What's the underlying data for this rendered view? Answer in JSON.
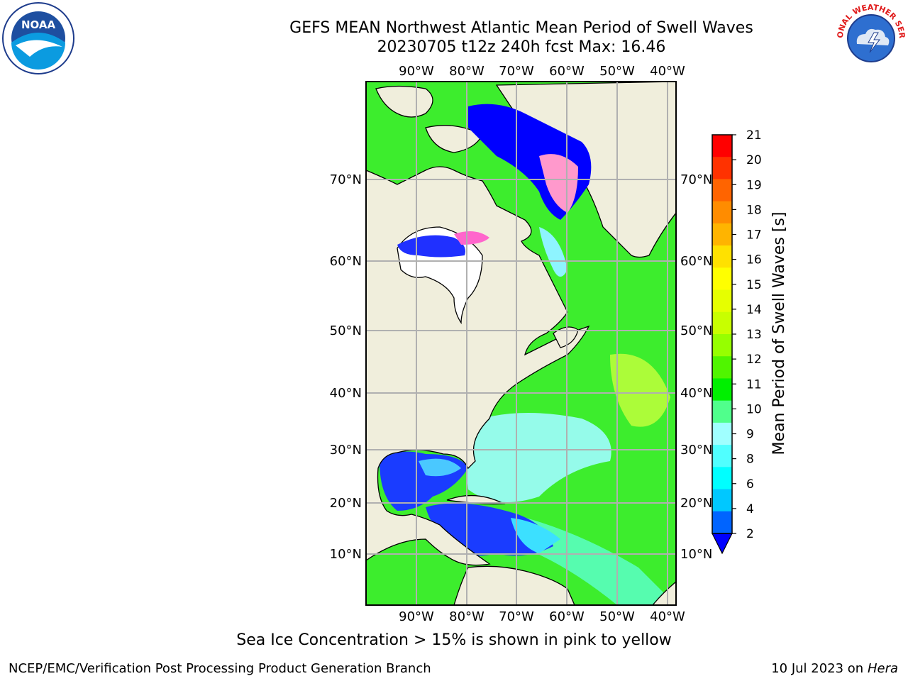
{
  "header": {
    "title_line1": "GEFS MEAN Northwest Atlantic Mean Period of Swell Waves",
    "title_line2": "20230705 t12z 240h fcst   Max: 16.46"
  },
  "map": {
    "lon_labels": [
      "90°W",
      "80°W",
      "70°W",
      "60°W",
      "50°W",
      "40°W"
    ],
    "lat_labels": [
      "70°N",
      "60°N",
      "50°N",
      "40°N",
      "30°N",
      "20°N",
      "10°N"
    ],
    "colors": {
      "land": "#f0eedc",
      "grid": "#b0b0b0",
      "coast": "#000000"
    }
  },
  "colorbar": {
    "label": "Mean Period of Swell Waves [s]",
    "ticks": [
      "21",
      "20",
      "19",
      "18",
      "17",
      "16",
      "15",
      "14",
      "13",
      "12",
      "11",
      "10",
      "9",
      "8",
      "6",
      "4",
      "2"
    ],
    "colors": [
      "#ff0000",
      "#ff3200",
      "#ff6400",
      "#ff8c00",
      "#ffb400",
      "#ffe100",
      "#ffff00",
      "#e6ff00",
      "#c8ff00",
      "#96ff00",
      "#50f500",
      "#00f000",
      "#50ff8c",
      "#a0ffff",
      "#50ffff",
      "#00ffff",
      "#00c8ff",
      "#0064ff"
    ],
    "under_color": "#0000ff"
  },
  "footer": {
    "note": "Sea Ice Concentration > 15% is shown in pink to yellow",
    "credit": "NCEP/EMC/Verification Post Processing Product Generation Branch",
    "date": "10 Jul 2023 on",
    "machine": "Hera"
  },
  "logos": {
    "noaa_text": "NOAA",
    "nws_text": "NATIONAL WEATHER SERVICE"
  }
}
